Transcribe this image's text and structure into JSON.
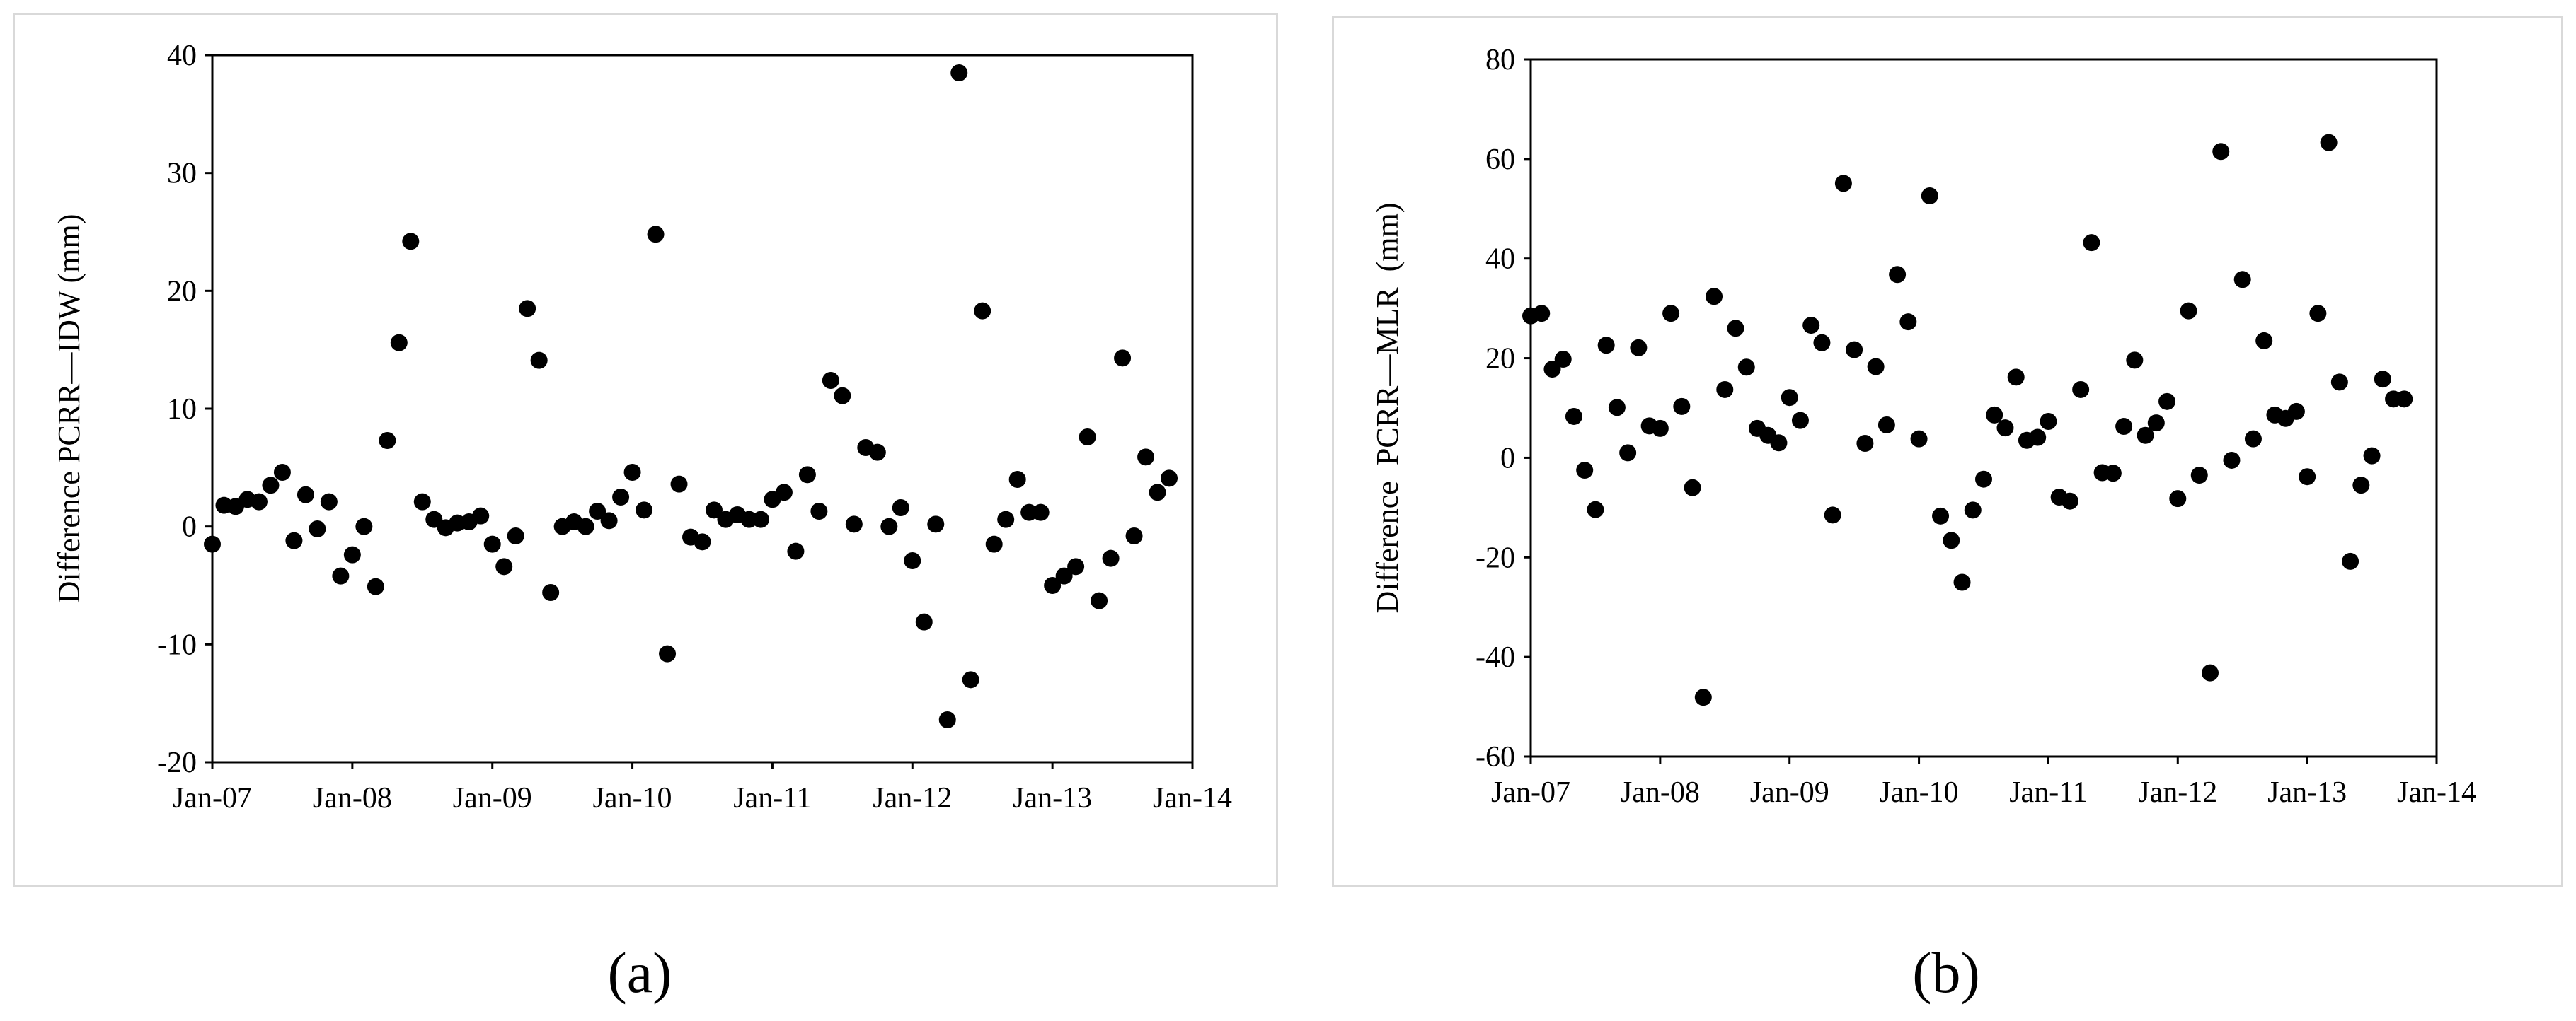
{
  "chart_data": [
    {
      "type": "scatter",
      "panel": "(a)",
      "ylabel": "Difference PCRR—IDW (mm)",
      "xlabel": "",
      "ylim": [
        -20,
        40
      ],
      "yticks": [
        "-20",
        "-10",
        "0",
        "10",
        "20",
        "30",
        "40"
      ],
      "xlim": [
        "2007-01",
        "2014-01"
      ],
      "xticks": [
        "Jan-07",
        "Jan-08",
        "Jan-09",
        "Jan-10",
        "Jan-11",
        "Jan-12",
        "Jan-13",
        "Jan-14"
      ],
      "grid": false,
      "marker_color": "#000000",
      "points": [
        {
          "x": "2007-01",
          "y": -1.5
        },
        {
          "x": "2007-02",
          "y": 1.8
        },
        {
          "x": "2007-03",
          "y": 1.7
        },
        {
          "x": "2007-04",
          "y": 2.3
        },
        {
          "x": "2007-05",
          "y": 2.1
        },
        {
          "x": "2007-06",
          "y": 3.5
        },
        {
          "x": "2007-07",
          "y": 4.6
        },
        {
          "x": "2007-08",
          "y": -1.2
        },
        {
          "x": "2007-09",
          "y": 2.7
        },
        {
          "x": "2007-10",
          "y": -0.2
        },
        {
          "x": "2007-11",
          "y": 2.1
        },
        {
          "x": "2007-12",
          "y": -4.2
        },
        {
          "x": "2008-01",
          "y": -2.4
        },
        {
          "x": "2008-02",
          "y": 0.0
        },
        {
          "x": "2008-03",
          "y": -5.1
        },
        {
          "x": "2008-04",
          "y": 7.3
        },
        {
          "x": "2008-05",
          "y": 15.6
        },
        {
          "x": "2008-06",
          "y": 24.2
        },
        {
          "x": "2008-07",
          "y": 2.1
        },
        {
          "x": "2008-08",
          "y": 0.6
        },
        {
          "x": "2008-09",
          "y": -0.1
        },
        {
          "x": "2008-10",
          "y": 0.3
        },
        {
          "x": "2008-11",
          "y": 0.4
        },
        {
          "x": "2008-12",
          "y": 0.9
        },
        {
          "x": "2009-01",
          "y": -1.5
        },
        {
          "x": "2009-02",
          "y": -3.4
        },
        {
          "x": "2009-03",
          "y": -0.8
        },
        {
          "x": "2009-04",
          "y": 18.5
        },
        {
          "x": "2009-05",
          "y": 14.1
        },
        {
          "x": "2009-06",
          "y": -5.6
        },
        {
          "x": "2009-07",
          "y": 0.0
        },
        {
          "x": "2009-08",
          "y": 0.4
        },
        {
          "x": "2009-09",
          "y": 0.0
        },
        {
          "x": "2009-10",
          "y": 1.3
        },
        {
          "x": "2009-11",
          "y": 0.5
        },
        {
          "x": "2009-12",
          "y": 2.5
        },
        {
          "x": "2010-01",
          "y": 4.6
        },
        {
          "x": "2010-02",
          "y": 1.4
        },
        {
          "x": "2010-03",
          "y": 24.8
        },
        {
          "x": "2010-04",
          "y": -10.8
        },
        {
          "x": "2010-05",
          "y": 3.6
        },
        {
          "x": "2010-06",
          "y": -0.9
        },
        {
          "x": "2010-07",
          "y": -1.3
        },
        {
          "x": "2010-08",
          "y": 1.4
        },
        {
          "x": "2010-09",
          "y": 0.6
        },
        {
          "x": "2010-10",
          "y": 1.0
        },
        {
          "x": "2010-11",
          "y": 0.6
        },
        {
          "x": "2010-12",
          "y": 0.6
        },
        {
          "x": "2011-01",
          "y": 2.3
        },
        {
          "x": "2011-02",
          "y": 2.9
        },
        {
          "x": "2011-03",
          "y": -2.1
        },
        {
          "x": "2011-04",
          "y": 4.4
        },
        {
          "x": "2011-05",
          "y": 1.3
        },
        {
          "x": "2011-06",
          "y": 12.4
        },
        {
          "x": "2011-07",
          "y": 11.1
        },
        {
          "x": "2011-08",
          "y": 0.2
        },
        {
          "x": "2011-09",
          "y": 6.7
        },
        {
          "x": "2011-10",
          "y": 6.3
        },
        {
          "x": "2011-11",
          "y": 0.0
        },
        {
          "x": "2011-12",
          "y": 1.6
        },
        {
          "x": "2012-01",
          "y": -2.9
        },
        {
          "x": "2012-02",
          "y": -8.1
        },
        {
          "x": "2012-03",
          "y": 0.2
        },
        {
          "x": "2012-04",
          "y": -16.4
        },
        {
          "x": "2012-05",
          "y": 38.5
        },
        {
          "x": "2012-06",
          "y": -13.0
        },
        {
          "x": "2012-07",
          "y": 18.3
        },
        {
          "x": "2012-08",
          "y": -1.5
        },
        {
          "x": "2012-09",
          "y": 0.6
        },
        {
          "x": "2012-10",
          "y": 4.0
        },
        {
          "x": "2012-11",
          "y": 1.2
        },
        {
          "x": "2012-12",
          "y": 1.2
        },
        {
          "x": "2013-01",
          "y": -5.0
        },
        {
          "x": "2013-02",
          "y": -4.2
        },
        {
          "x": "2013-03",
          "y": -3.4
        },
        {
          "x": "2013-04",
          "y": 7.6
        },
        {
          "x": "2013-05",
          "y": -6.3
        },
        {
          "x": "2013-06",
          "y": -2.7
        },
        {
          "x": "2013-07",
          "y": 14.3
        },
        {
          "x": "2013-08",
          "y": -0.8
        },
        {
          "x": "2013-09",
          "y": 5.9
        },
        {
          "x": "2013-10",
          "y": 2.9
        },
        {
          "x": "2013-11",
          "y": 4.1
        }
      ]
    },
    {
      "type": "scatter",
      "panel": "(b)",
      "ylabel": "Difference  PCRR—MLR  (mm)",
      "xlabel": "",
      "ylim": [
        -60,
        80
      ],
      "yticks": [
        "-60",
        "-40",
        "-20",
        "0",
        "20",
        "40",
        "60",
        "80"
      ],
      "xlim": [
        "2007-01",
        "2014-01"
      ],
      "xticks": [
        "Jan-07",
        "Jan-08",
        "Jan-09",
        "Jan-10",
        "Jan-11",
        "Jan-12",
        "Jan-13",
        "Jan-14"
      ],
      "grid": false,
      "marker_color": "#000000",
      "points": [
        {
          "x": "2007-01",
          "y": 28.5
        },
        {
          "x": "2007-02",
          "y": 29.0
        },
        {
          "x": "2007-03",
          "y": 17.8
        },
        {
          "x": "2007-04",
          "y": 19.8
        },
        {
          "x": "2007-05",
          "y": 8.3
        },
        {
          "x": "2007-06",
          "y": -2.5
        },
        {
          "x": "2007-07",
          "y": -10.4
        },
        {
          "x": "2007-08",
          "y": 22.6
        },
        {
          "x": "2007-09",
          "y": 10.1
        },
        {
          "x": "2007-10",
          "y": 1.0
        },
        {
          "x": "2007-11",
          "y": 22.1
        },
        {
          "x": "2007-12",
          "y": 6.4
        },
        {
          "x": "2008-01",
          "y": 5.9
        },
        {
          "x": "2008-02",
          "y": 29.0
        },
        {
          "x": "2008-03",
          "y": 10.3
        },
        {
          "x": "2008-04",
          "y": -6.0
        },
        {
          "x": "2008-05",
          "y": -48.1
        },
        {
          "x": "2008-06",
          "y": 32.4
        },
        {
          "x": "2008-07",
          "y": 13.7
        },
        {
          "x": "2008-08",
          "y": 26.0
        },
        {
          "x": "2008-09",
          "y": 18.2
        },
        {
          "x": "2008-10",
          "y": 5.9
        },
        {
          "x": "2008-11",
          "y": 4.5
        },
        {
          "x": "2008-12",
          "y": 3.0
        },
        {
          "x": "2009-01",
          "y": 12.1
        },
        {
          "x": "2009-02",
          "y": 7.5
        },
        {
          "x": "2009-03",
          "y": 26.6
        },
        {
          "x": "2009-04",
          "y": 23.1
        },
        {
          "x": "2009-05",
          "y": -11.5
        },
        {
          "x": "2009-06",
          "y": 55.1
        },
        {
          "x": "2009-07",
          "y": 21.7
        },
        {
          "x": "2009-08",
          "y": 2.9
        },
        {
          "x": "2009-09",
          "y": 18.3
        },
        {
          "x": "2009-10",
          "y": 6.6
        },
        {
          "x": "2009-11",
          "y": 36.8
        },
        {
          "x": "2009-12",
          "y": 27.3
        },
        {
          "x": "2010-01",
          "y": 3.8
        },
        {
          "x": "2010-02",
          "y": 52.6
        },
        {
          "x": "2010-03",
          "y": -11.7
        },
        {
          "x": "2010-04",
          "y": -16.6
        },
        {
          "x": "2010-05",
          "y": -25.0
        },
        {
          "x": "2010-06",
          "y": -10.5
        },
        {
          "x": "2010-07",
          "y": -4.3
        },
        {
          "x": "2010-08",
          "y": 8.6
        },
        {
          "x": "2010-09",
          "y": 6.0
        },
        {
          "x": "2010-10",
          "y": 16.2
        },
        {
          "x": "2010-11",
          "y": 3.5
        },
        {
          "x": "2010-12",
          "y": 4.1
        },
        {
          "x": "2011-01",
          "y": 7.3
        },
        {
          "x": "2011-02",
          "y": -7.9
        },
        {
          "x": "2011-03",
          "y": -8.7
        },
        {
          "x": "2011-04",
          "y": 13.7
        },
        {
          "x": "2011-05",
          "y": 43.2
        },
        {
          "x": "2011-06",
          "y": -3.0
        },
        {
          "x": "2011-07",
          "y": -3.1
        },
        {
          "x": "2011-08",
          "y": 6.3
        },
        {
          "x": "2011-09",
          "y": 19.6
        },
        {
          "x": "2011-10",
          "y": 4.5
        },
        {
          "x": "2011-11",
          "y": 7.0
        },
        {
          "x": "2011-12",
          "y": 11.3
        },
        {
          "x": "2012-01",
          "y": -8.2
        },
        {
          "x": "2012-02",
          "y": 29.5
        },
        {
          "x": "2012-03",
          "y": -3.5
        },
        {
          "x": "2012-04",
          "y": -43.2
        },
        {
          "x": "2012-05",
          "y": 61.5
        },
        {
          "x": "2012-06",
          "y": -0.5
        },
        {
          "x": "2012-07",
          "y": 35.8
        },
        {
          "x": "2012-08",
          "y": 3.8
        },
        {
          "x": "2012-09",
          "y": 23.5
        },
        {
          "x": "2012-10",
          "y": 8.6
        },
        {
          "x": "2012-11",
          "y": 7.9
        },
        {
          "x": "2012-12",
          "y": 9.3
        },
        {
          "x": "2013-01",
          "y": -3.8
        },
        {
          "x": "2013-02",
          "y": 29.0
        },
        {
          "x": "2013-03",
          "y": 63.3
        },
        {
          "x": "2013-04",
          "y": 15.2
        },
        {
          "x": "2013-05",
          "y": -20.8
        },
        {
          "x": "2013-06",
          "y": -5.5
        },
        {
          "x": "2013-07",
          "y": 0.4
        },
        {
          "x": "2013-08",
          "y": 15.8
        },
        {
          "x": "2013-09",
          "y": 11.8
        },
        {
          "x": "2013-10",
          "y": 11.8
        }
      ]
    }
  ],
  "panel_labels": {
    "a": "(a)",
    "b": "(b)"
  }
}
